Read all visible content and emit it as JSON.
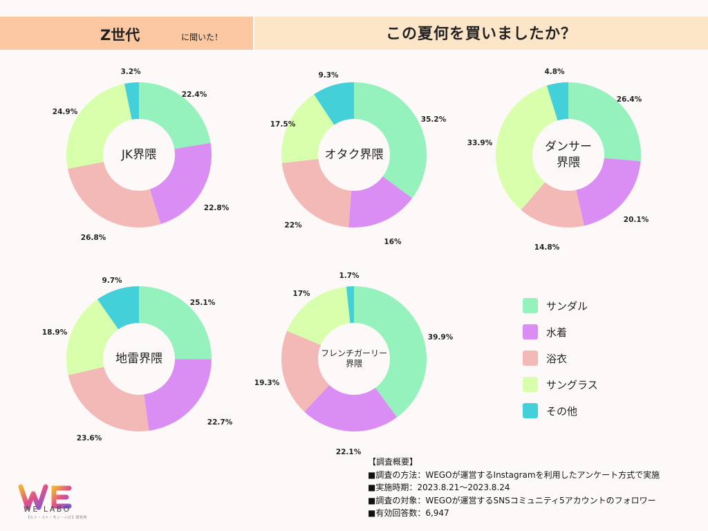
{
  "header": {
    "generation": "Z世代",
    "generation_sub": "に聞いた！",
    "question": "この夏何を買いましたか？"
  },
  "colors": {
    "sandal": "#96f2bd",
    "swimsuit": "#da8ef3",
    "yukata": "#f3b9b7",
    "sunglasses": "#d7ffac",
    "other": "#43d0d8"
  },
  "legend": [
    {
      "label": "サンダル",
      "color": "#96f2bd"
    },
    {
      "label": "水着",
      "color": "#da8ef3"
    },
    {
      "label": "浴衣",
      "color": "#f3b9b7"
    },
    {
      "label": "サングラス",
      "color": "#d7ffac"
    },
    {
      "label": "その他",
      "color": "#43d0d8"
    }
  ],
  "chart_data": [
    {
      "type": "pie",
      "center_label": [
        "JK界隈"
      ],
      "categories": [
        "サンダル",
        "水着",
        "浴衣",
        "サングラス",
        "その他"
      ],
      "values": [
        22.4,
        22.8,
        26.8,
        24.9,
        3.2
      ],
      "labels": [
        "22.4%",
        "22.8%",
        "26.8%",
        "24.9%",
        "3.2%"
      ]
    },
    {
      "type": "pie",
      "center_label": [
        "オタク界隈"
      ],
      "categories": [
        "サンダル",
        "水着",
        "浴衣",
        "サングラス",
        "その他"
      ],
      "values": [
        35.2,
        16,
        22,
        17.5,
        9.3
      ],
      "labels": [
        "35.2%",
        "16%",
        "22%",
        "17.5%",
        "9.3%"
      ]
    },
    {
      "type": "pie",
      "center_label": [
        "ダンサー",
        "界隈"
      ],
      "categories": [
        "サンダル",
        "水着",
        "浴衣",
        "サングラス",
        "その他"
      ],
      "values": [
        26.4,
        20.1,
        14.8,
        33.9,
        4.8
      ],
      "labels": [
        "26.4%",
        "20.1%",
        "14.8%",
        "33.9%",
        "4.8%"
      ]
    },
    {
      "type": "pie",
      "center_label": [
        "地雷界隈"
      ],
      "categories": [
        "サンダル",
        "水着",
        "浴衣",
        "サングラス",
        "その他"
      ],
      "values": [
        25.1,
        22.7,
        23.6,
        18.9,
        9.7
      ],
      "labels": [
        "25.1%",
        "22.7%",
        "23.6%",
        "18.9%",
        "9.7%"
      ]
    },
    {
      "type": "pie",
      "center_label": [
        "フレンチガーリー",
        "界隈"
      ],
      "center_small": true,
      "categories": [
        "サンダル",
        "水着",
        "浴衣",
        "サングラス",
        "その他"
      ],
      "values": [
        39.9,
        22.1,
        19.3,
        17,
        1.7
      ],
      "labels": [
        "39.9%",
        "22.1%",
        "19.3%",
        "17%",
        "1.7%"
      ]
    }
  ],
  "survey": {
    "title": "【調査概要】",
    "method": "■調査の方法：WEGOが運営するInstagramを利用したアンケート方式で実施",
    "period": "■実施時期：2023.8.21〜2023.8.24",
    "target": "■調査の対象：WEGOが運営するSNSコミュニティ5アカウントのフォロワー",
    "responses": "■有効回答数：6,947"
  },
  "logo": {
    "mark": "WE",
    "name": "WE LABO",
    "tagline": "【ヒト・コト・モノ・ハピ】研究所"
  }
}
